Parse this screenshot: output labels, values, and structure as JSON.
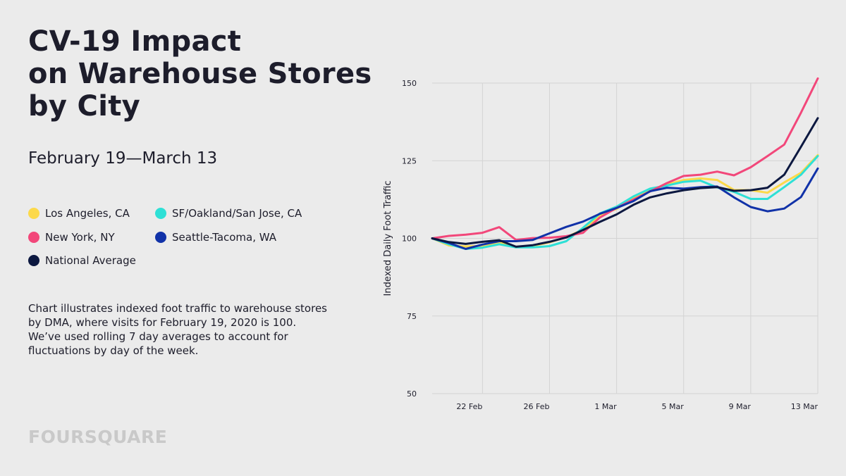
{
  "title_lines": [
    "CV-19 Impact",
    "on Warehouse Stores",
    "by City"
  ],
  "subtitle": "February 19—March 13",
  "legend": [
    {
      "name": "Los Angeles, CA",
      "color": "#fcd94a"
    },
    {
      "name": "SF/Oakland/San Jose, CA",
      "color": "#2ee0d6"
    },
    {
      "name": "New York, NY",
      "color": "#f2477a"
    },
    {
      "name": "Seattle-Tacoma, WA",
      "color": "#1132a8"
    },
    {
      "name": "National Average",
      "color": "#0c1840"
    }
  ],
  "description": "Chart illustrates indexed foot traffic to warehouse stores by DMA, where visits for February 19, 2020 is 100. We’ve used rolling 7 day averages to account for fluctuations by day of the week.",
  "brand": "FOURSQUARE",
  "chart_data": {
    "type": "line",
    "ylabel": "Indexed Daily Foot Traffic",
    "ylim": [
      50,
      150
    ],
    "yticks": [
      50,
      75,
      100,
      125,
      150
    ],
    "xticks": [
      {
        "label": "22 Feb",
        "index": 3
      },
      {
        "label": "26 Feb",
        "index": 7
      },
      {
        "label": "1 Mar",
        "index": 11
      },
      {
        "label": "5 Mar",
        "index": 15
      },
      {
        "label": "9 Mar",
        "index": 19
      },
      {
        "label": "13 Mar",
        "index": 23
      }
    ],
    "x": [
      "Feb 19",
      "Feb 20",
      "Feb 21",
      "Feb 22",
      "Feb 23",
      "Feb 24",
      "Feb 25",
      "Feb 26",
      "Feb 27",
      "Feb 28",
      "Feb 29",
      "Mar 1",
      "Mar 2",
      "Mar 3",
      "Mar 4",
      "Mar 5",
      "Mar 6",
      "Mar 7",
      "Mar 8",
      "Mar 9",
      "Mar 10",
      "Mar 11",
      "Mar 12",
      "Mar 13"
    ],
    "grid": true,
    "series": [
      {
        "name": "Los Angeles, CA",
        "color": "#fcd94a",
        "values": [
          100,
          97.7,
          97.4,
          97.6,
          98.8,
          97.1,
          97.6,
          98.7,
          100.4,
          102.8,
          107.5,
          109.5,
          113.0,
          115.5,
          117.3,
          118.8,
          119.3,
          118.8,
          115.6,
          115.5,
          114.7,
          118.0,
          121.1,
          126.8
        ]
      },
      {
        "name": "SF/Oakland/San Jose, CA",
        "color": "#2ee0d6",
        "values": [
          100,
          98.1,
          96.6,
          97.0,
          98.1,
          97.1,
          97.1,
          97.5,
          99.1,
          103.4,
          108.0,
          110.2,
          113.5,
          116.0,
          117.0,
          118.2,
          118.6,
          116.4,
          115.0,
          112.7,
          112.7,
          116.5,
          120.5,
          126.5
        ]
      },
      {
        "name": "New York, NY",
        "color": "#f2477a",
        "values": [
          100,
          100.8,
          101.2,
          101.8,
          103.6,
          99.5,
          100.1,
          100.2,
          100.7,
          101.8,
          106.7,
          109.8,
          112.5,
          115.1,
          117.8,
          120.1,
          120.5,
          121.5,
          120.3,
          122.9,
          126.5,
          130.2,
          140.5,
          151.5
        ]
      },
      {
        "name": "Seattle-Tacoma, WA",
        "color": "#1132a8",
        "values": [
          100,
          98.5,
          96.6,
          98.0,
          99.1,
          99.1,
          99.5,
          101.6,
          103.7,
          105.4,
          107.9,
          109.8,
          112.0,
          115.2,
          116.3,
          116.0,
          116.5,
          116.7,
          113.2,
          110.1,
          108.7,
          109.6,
          113.3,
          122.5
        ]
      },
      {
        "name": "National Average",
        "color": "#0c1840",
        "values": [
          100,
          98.8,
          98.2,
          98.9,
          99.4,
          97.3,
          97.8,
          98.9,
          100.3,
          102.7,
          105.3,
          107.7,
          110.8,
          113.2,
          114.5,
          115.5,
          116.2,
          116.5,
          115.3,
          115.5,
          116.3,
          120.5,
          129.5,
          138.7
        ]
      }
    ]
  }
}
